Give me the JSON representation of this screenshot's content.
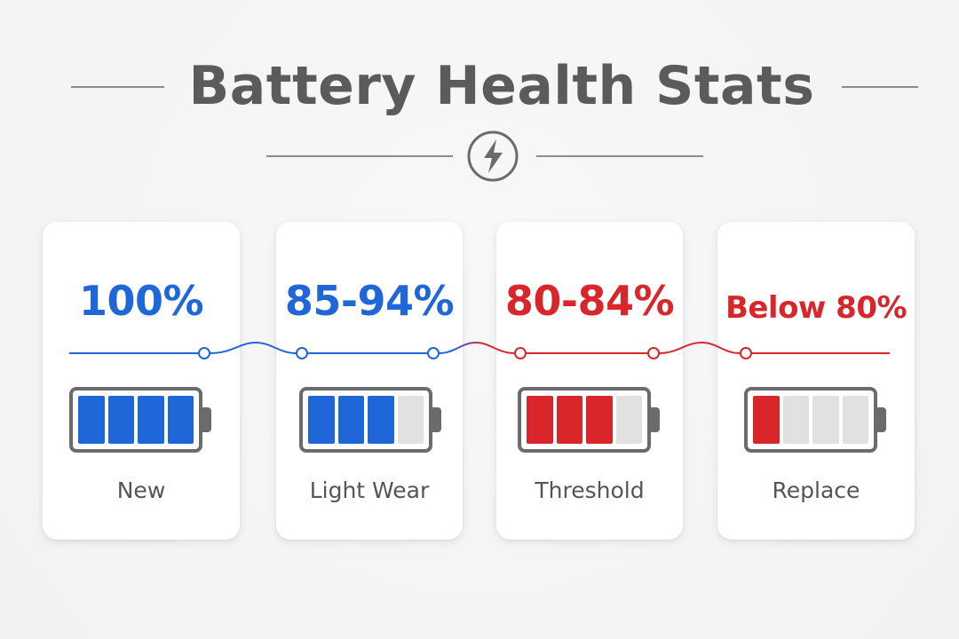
{
  "title": "Battery Health Stats",
  "icon": "lightning-bolt-icon",
  "colors": {
    "blue": "#1f66d9",
    "red": "#d8262b",
    "empty_cell": "#e1e1e2",
    "title_text": "#5b5b5d",
    "rule": "#8c8c8e"
  },
  "stages": [
    {
      "range": "100%",
      "label": "New",
      "color": "blue",
      "filled_cells": 4,
      "total_cells": 4
    },
    {
      "range": "85-94%",
      "label": "Light Wear",
      "color": "blue",
      "filled_cells": 3,
      "total_cells": 4
    },
    {
      "range": "80-84%",
      "label": "Threshold",
      "color": "red",
      "filled_cells": 3,
      "total_cells": 4
    },
    {
      "range": "Below 80%",
      "label": "Replace",
      "color": "red",
      "filled_cells": 1,
      "total_cells": 4
    }
  ]
}
